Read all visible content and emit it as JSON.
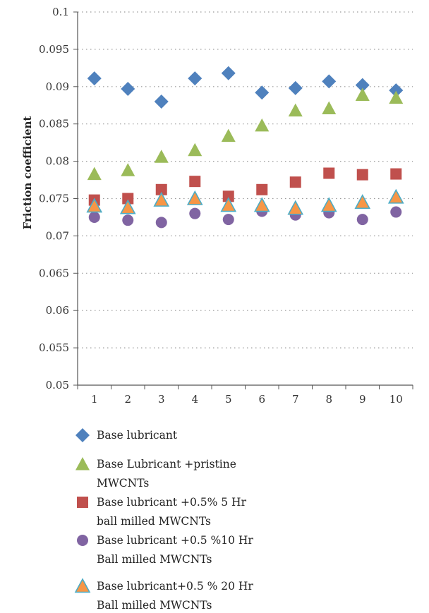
{
  "chart_data": {
    "type": "scatter",
    "title": "",
    "xlabel": "",
    "ylabel": "Friction coefficient",
    "categories": [
      "1",
      "2",
      "3",
      "4",
      "5",
      "6",
      "7",
      "8",
      "9",
      "10"
    ],
    "ylim": [
      0.05,
      0.1
    ],
    "yticks": [
      "0.05",
      "0.055",
      "0.06",
      "0.065",
      "0.07",
      "0.075",
      "0.08",
      "0.085",
      "0.09",
      "0.095",
      "0.1"
    ],
    "grid": "horizontal dotted",
    "legend_position": "bottom",
    "series": [
      {
        "name_lines": [
          "Base lubricant"
        ],
        "marker": "diamond",
        "color": "#4f81bd",
        "values": [
          0.0911,
          0.0897,
          0.088,
          0.0911,
          0.0918,
          0.0892,
          0.0898,
          0.0907,
          0.0902,
          0.0895
        ]
      },
      {
        "name_lines": [
          "Base Lubricant +pristine",
          "MWCNTs"
        ],
        "marker": "triangle",
        "color": "#9bbb59",
        "values": [
          0.0783,
          0.0788,
          0.0806,
          0.0815,
          0.0834,
          0.0848,
          0.0868,
          0.0871,
          0.0889,
          0.0885
        ]
      },
      {
        "name_lines": [
          "Base lubricant +0.5% 5 Hr",
          "ball milled MWCNTs"
        ],
        "marker": "square",
        "color": "#c0504d",
        "values": [
          0.0748,
          0.075,
          0.0762,
          0.0773,
          0.0753,
          0.0762,
          0.0772,
          0.0784,
          0.0782,
          0.0783
        ]
      },
      {
        "name_lines": [
          "Base lubricant +0.5 %10 Hr",
          "Ball milled MWCNTs"
        ],
        "marker": "circle",
        "color": "#8064a2",
        "values": [
          0.0725,
          0.0721,
          0.0718,
          0.073,
          0.0722,
          0.0733,
          0.0728,
          0.0731,
          0.0722,
          0.0732
        ]
      },
      {
        "name_lines": [
          "Base lubricant+0.5 % 20 Hr",
          "Ball milled MWCNTs"
        ],
        "marker": "triangle",
        "color": "#f79646",
        "edge_color": "#4bacc6",
        "values": [
          0.074,
          0.0738,
          0.0748,
          0.075,
          0.0741,
          0.0741,
          0.0737,
          0.0741,
          0.0745,
          0.0752
        ]
      }
    ]
  }
}
